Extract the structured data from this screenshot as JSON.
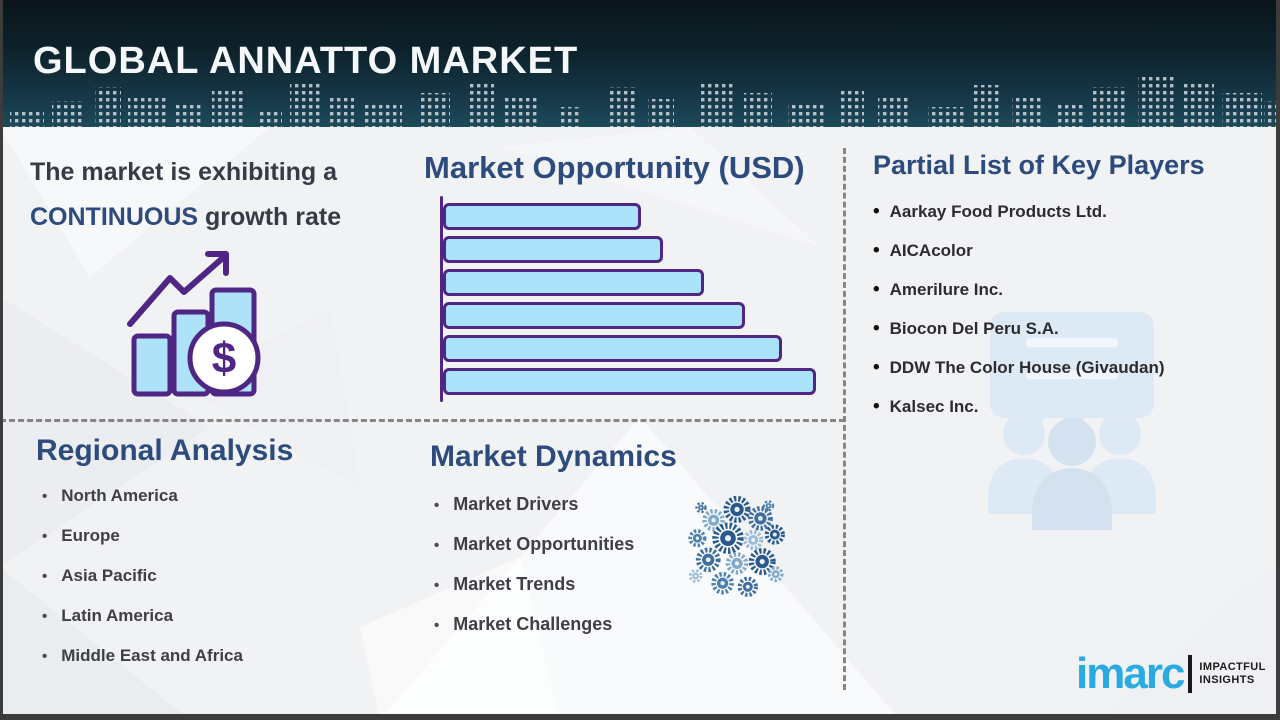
{
  "header": {
    "title": "GLOBAL ANNATTO MARKET"
  },
  "growth_statement": {
    "prefix": "The market is exhibiting a",
    "highlight": "CONTINUOUS",
    "suffix": "growth rate"
  },
  "market_opportunity": {
    "title": "Market Opportunity (USD)"
  },
  "chart_data": {
    "type": "bar",
    "orientation": "horizontal",
    "title": "Market Opportunity (USD)",
    "categories": [
      "bar-1",
      "bar-2",
      "bar-3",
      "bar-4",
      "bar-5",
      "bar-6"
    ],
    "values": [
      53,
      59,
      70,
      81,
      91,
      100
    ],
    "value_unit": "relative bar length, % of longest bar (no numeric labels shown)",
    "xlabel": "",
    "ylabel": "",
    "axis_labels_shown": false,
    "legend": "none",
    "bar_fill": "#A9E2F9",
    "bar_outline": "#4F2683"
  },
  "key_players": {
    "title": "Partial List of Key Players",
    "items": [
      "Aarkay Food Products Ltd.",
      "AICAcolor",
      "Amerilure Inc.",
      "Biocon Del Peru S.A.",
      "DDW The Color House (Givaudan)",
      "Kalsec Inc."
    ]
  },
  "regional_analysis": {
    "title": "Regional Analysis",
    "items": [
      "North America",
      "Europe",
      "Asia Pacific",
      "Latin America",
      "Middle East and Africa"
    ]
  },
  "market_dynamics": {
    "title": "Market Dynamics",
    "items": [
      "Market Drivers",
      "Market Opportunities",
      "Market Trends",
      "Market Challenges"
    ]
  },
  "logo": {
    "brand": "imarc",
    "tagline_top": "IMPACTFUL",
    "tagline_bottom": "INSIGHTS"
  },
  "icons": {
    "growth_icon": "bar-chart-rising-arrow-dollar",
    "dynamics_icon": "sphere-of-gears",
    "watermark_icon": "speech-bubble-over-three-people",
    "header_graphic": "city-skyline"
  },
  "colors": {
    "header_dark": "#0A151B",
    "header_teal": "#1D4A5A",
    "navy_heading": "#2D4B7C",
    "purple_accent": "#4F2683",
    "bar_fill": "#A9E2F9",
    "body_text": "#3F3F46",
    "imarc_blue": "#29ABE2",
    "background": "#F1F2F4",
    "divider_gray": "#868686"
  }
}
